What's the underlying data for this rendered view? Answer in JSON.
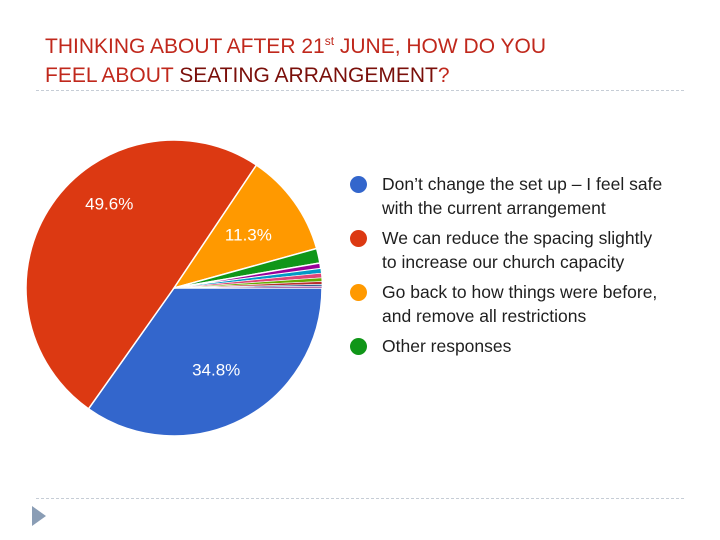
{
  "title": {
    "line1_a": "THINKING ABOUT AFTER 21",
    "line1_sup": "st",
    "line1_b": " JUNE, HOW DO YOU",
    "line2_a": "FEEL ABOUT ",
    "line2_dark": "SEATING ARRANGEMENT",
    "line2_end": "?"
  },
  "chart_data": {
    "type": "pie",
    "title": "THINKING ABOUT AFTER 21st JUNE, HOW DO YOU FEEL ABOUT SEATING ARRANGEMENT?",
    "legend_position": "right",
    "slices": [
      {
        "label": "Don’t change the set up – I feel safe with the current arrangement",
        "value": 34.8,
        "display": "34.8%",
        "color": "#3366cc"
      },
      {
        "label": "We can reduce the spacing slightly to increase our church capacity",
        "value": 49.6,
        "display": "49.6%",
        "color": "#dc3912"
      },
      {
        "label": "Go back to how things were before, and remove all restrictions",
        "value": 11.3,
        "display": "11.3%",
        "color": "#ff9900"
      },
      {
        "label": "Other responses",
        "value": 1.6,
        "display": "",
        "color": "#109618"
      },
      {
        "label": "",
        "value": 0.6,
        "display": "",
        "color": "#990099"
      },
      {
        "label": "",
        "value": 0.5,
        "display": "",
        "color": "#0099c6"
      },
      {
        "label": "",
        "value": 0.5,
        "display": "",
        "color": "#dd4477"
      },
      {
        "label": "",
        "value": 0.4,
        "display": "",
        "color": "#66aa00"
      },
      {
        "label": "",
        "value": 0.3,
        "display": "",
        "color": "#b82e2e"
      },
      {
        "label": "",
        "value": 0.2,
        "display": "",
        "color": "#316395"
      },
      {
        "label": "",
        "value": 0.2,
        "display": "",
        "color": "#994499"
      }
    ],
    "legend": [
      {
        "lines": [
          "Don’t change the set up – I feel safe",
          "with the current arrangement"
        ],
        "color": "#3366cc"
      },
      {
        "lines": [
          "We can reduce the spacing slightly",
          "to increase our church capacity"
        ],
        "color": "#dc3912"
      },
      {
        "lines": [
          "Go back to how things were before,",
          "and remove all restrictions"
        ],
        "color": "#ff9900"
      },
      {
        "lines": [
          "Other responses"
        ],
        "color": "#109618"
      }
    ]
  }
}
